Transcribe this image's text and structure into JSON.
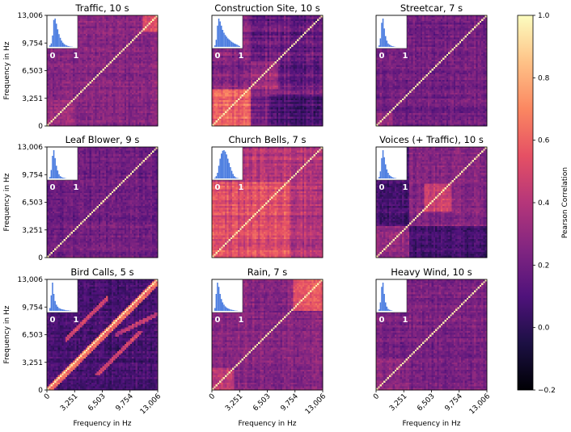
{
  "chart_data": {
    "type": "heatmap",
    "layout": "3x3 grid of square correlation matrices with a shared colorbar",
    "panels": [
      {
        "title": "Traffic, 10 s",
        "base": 0.26,
        "pattern": "traffic",
        "hist": [
          0.05,
          0.12,
          0.4,
          0.95,
          1.0,
          0.82,
          0.62,
          0.45,
          0.32,
          0.22,
          0.15,
          0.1,
          0.07,
          0.05,
          0.03,
          0.02,
          0.01,
          0.01,
          0,
          0
        ]
      },
      {
        "title": "Construction Site, 10 s",
        "base": 0.3,
        "pattern": "construction",
        "hist": [
          0.05,
          0.25,
          0.75,
          1.0,
          0.9,
          0.75,
          0.6,
          0.5,
          0.42,
          0.36,
          0.3,
          0.26,
          0.22,
          0.18,
          0.15,
          0.12,
          0.1,
          0.08,
          0.05,
          0.03
        ]
      },
      {
        "title": "Streetcar, 7 s",
        "base": 0.2,
        "pattern": "streetcar",
        "hist": [
          0.05,
          0.3,
          0.85,
          1.0,
          0.65,
          0.38,
          0.22,
          0.12,
          0.08,
          0.05,
          0.03,
          0.02,
          0.01,
          0,
          0,
          0,
          0,
          0,
          0,
          0
        ]
      },
      {
        "title": "Leaf Blower, 9 s",
        "base": 0.2,
        "pattern": "leaf",
        "hist": [
          0.05,
          0.3,
          0.8,
          1.0,
          0.72,
          0.45,
          0.28,
          0.15,
          0.08,
          0.05,
          0.03,
          0.02,
          0.01,
          0,
          0,
          0,
          0,
          0,
          0,
          0
        ]
      },
      {
        "title": "Church Bells, 7 s",
        "base": 0.4,
        "pattern": "church",
        "hist": [
          0.02,
          0.08,
          0.2,
          0.45,
          0.7,
          0.88,
          0.98,
          1.0,
          0.95,
          0.85,
          0.7,
          0.55,
          0.4,
          0.27,
          0.16,
          0.08,
          0.04,
          0.02,
          0.01,
          0
        ]
      },
      {
        "title": "Voices (+ Traffic), 10 s",
        "base": 0.25,
        "pattern": "voices",
        "hist": [
          0.05,
          0.25,
          0.72,
          1.0,
          0.75,
          0.5,
          0.32,
          0.2,
          0.12,
          0.08,
          0.05,
          0.03,
          0.02,
          0.01,
          0,
          0,
          0,
          0,
          0,
          0
        ]
      },
      {
        "title": "Bird Calls, 5 s",
        "base": 0.08,
        "pattern": "bird",
        "hist": [
          0.1,
          0.55,
          1.0,
          0.6,
          0.35,
          0.22,
          0.15,
          0.1,
          0.08,
          0.06,
          0.05,
          0.04,
          0.03,
          0.02,
          0.02,
          0.01,
          0.01,
          0,
          0,
          0
        ]
      },
      {
        "title": "Rain, 7 s",
        "base": 0.26,
        "pattern": "rain",
        "hist": [
          0.1,
          0.6,
          1.0,
          0.85,
          0.6,
          0.42,
          0.3,
          0.22,
          0.16,
          0.12,
          0.09,
          0.07,
          0.05,
          0.04,
          0.03,
          0.02,
          0.01,
          0.01,
          0,
          0
        ]
      },
      {
        "title": "Heavy Wind, 10 s",
        "base": 0.22,
        "pattern": "wind",
        "hist": [
          0.05,
          0.3,
          0.85,
          1.0,
          0.6,
          0.3,
          0.15,
          0.07,
          0.04,
          0.02,
          0.01,
          0,
          0,
          0,
          0,
          0,
          0,
          0,
          0,
          0
        ]
      }
    ],
    "axis_ticks": [
      "0",
      "3,251",
      "6,503",
      "9,754",
      "13,006"
    ],
    "xlabel": "Frequency in Hz",
    "ylabel": "Frequency in Hz",
    "hist_ticks": [
      "0",
      "1"
    ],
    "colorbar": {
      "label": "Pearson Correlation",
      "min": -0.2,
      "max": 1.0,
      "ticks": [
        "1.0",
        "0.8",
        "0.6",
        "0.4",
        "0.2",
        "0.0",
        "−0.2"
      ],
      "colormap": "magma",
      "stops": [
        "#000004",
        "#1c1044",
        "#4f127b",
        "#812581",
        "#b5367a",
        "#e55064",
        "#fb8761",
        "#fec287",
        "#fcfdbf"
      ]
    },
    "hist_color": "#4a7ce0",
    "grid": false
  }
}
